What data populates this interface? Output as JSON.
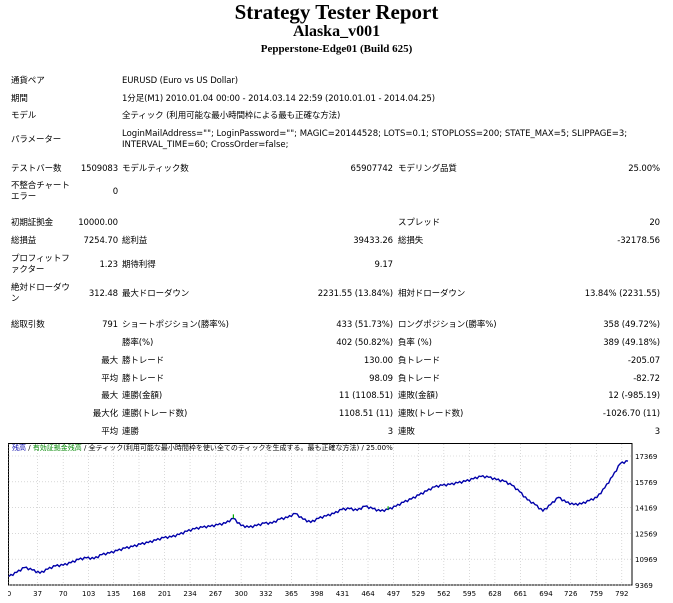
{
  "header": {
    "title": "Strategy Tester Report",
    "ea_name": "Alaska_v001",
    "server": "Pepperstone-Edge01 (Build 625)"
  },
  "info": {
    "symbol_label": "通貨ペア",
    "symbol_value": "EURUSD (Euro vs US Dollar)",
    "period_label": "期間",
    "period_value": "1分足(M1) 2010.01.04 00:00 - 2014.03.14 22:59 (2010.01.01 - 2014.04.25)",
    "model_label": "モデル",
    "model_value": "全ティック (利用可能な最小時間枠による最も正確な方法)",
    "params_label": "パラメーター",
    "params_value": "LoginMailAddress=\"\"; LoginPassword=\"\"; MAGIC=20144528; LOTS=0.1; STOPLOSS=200; STATE_MAX=5; SLIPPAGE=3; INTERVAL_TIME=60; CrossOrder=false;"
  },
  "stats": {
    "bars_label": "テストバー数",
    "bars_value": "1509083",
    "ticks_label": "モデルティック数",
    "ticks_value": "65907742",
    "quality_label": "モデリング品質",
    "quality_value": "25.00%",
    "mismatch_label": "不整合チャート\nエラー",
    "mismatch_value": "0",
    "deposit_label": "初期証拠金",
    "deposit_value": "10000.00",
    "spread_label": "スプレッド",
    "spread_value": "20",
    "net_label": "総損益",
    "net_value": "7254.70",
    "gross_profit_label": "総利益",
    "gross_profit_value": "39433.26",
    "gross_loss_label": "総損失",
    "gross_loss_value": "-32178.56",
    "pf_label": "プロフィットファクター",
    "pf_value": "1.23",
    "payoff_label": "期待利得",
    "payoff_value": "9.17",
    "abs_dd_label": "絶対ドローダウン",
    "abs_dd_value": "312.48",
    "max_dd_label": "最大ドローダウン",
    "max_dd_value": "2231.55 (13.84%)",
    "rel_dd_label": "相対ドローダウン",
    "rel_dd_value": "13.84% (2231.55)",
    "total_trades_label": "総取引数",
    "total_trades_value": "791",
    "short_label": "ショートポジション(勝率%)",
    "short_value": "433 (51.73%)",
    "long_label": "ロングポジション(勝率%)",
    "long_value": "358 (49.72%)",
    "win_label": "勝率(%)",
    "win_value": "402 (50.82%)",
    "loss_label": "負率 (%)",
    "loss_value": "389 (49.18%)",
    "largest_label": "最大",
    "largest_win_label": "勝トレード",
    "largest_win_value": "130.00",
    "largest_loss_label": "負トレード",
    "largest_loss_value": "-205.07",
    "average_label": "平均",
    "avg_win_label": "勝トレード",
    "avg_win_value": "98.09",
    "avg_loss_label": "負トレード",
    "avg_loss_value": "-82.72",
    "max_label": "最大",
    "cons_wins_label": "連勝(金額)",
    "cons_wins_value": "11 (1108.51)",
    "cons_losses_label": "連敗(金額)",
    "cons_losses_value": "12 (-985.19)",
    "maximal_label": "最大化",
    "cons_profit_label": "連勝(トレード数)",
    "cons_profit_value": "1108.51 (11)",
    "cons_loss_label": "連敗(トレード数)",
    "cons_loss_value": "-1026.70 (11)",
    "avg2_label": "平均",
    "avg_cons_wins_label": "連勝",
    "avg_cons_wins_value": "3",
    "avg_cons_losses_label": "連敗",
    "avg_cons_losses_value": "3"
  },
  "chart_legend": {
    "balance": "残高",
    "sep1": " / ",
    "equity": "有効証拠金残高",
    "sep2": " / ",
    "rest": "全ティック(利用可能な最小時間枠を使い全てのティックを生成する。最も正確な方法) / 25.00%"
  },
  "chart_data": {
    "type": "line",
    "x_ticks": [
      "0",
      "37",
      "70",
      "103",
      "135",
      "168",
      "201",
      "234",
      "267",
      "300",
      "332",
      "365",
      "398",
      "431",
      "464",
      "497",
      "529",
      "562",
      "595",
      "628",
      "661",
      "694",
      "726",
      "759",
      "792"
    ],
    "y_ticks": [
      "17369",
      "15769",
      "14169",
      "12569",
      "10969",
      "9369"
    ],
    "ylim": [
      9369,
      17369
    ],
    "xlim": [
      0,
      800
    ],
    "series": [
      {
        "values": [
          [
            0,
            9900
          ],
          [
            10,
            10150
          ],
          [
            20,
            10450
          ],
          [
            30,
            10300
          ],
          [
            40,
            10100
          ],
          [
            50,
            10350
          ],
          [
            60,
            10550
          ],
          [
            70,
            10600
          ],
          [
            80,
            10750
          ],
          [
            90,
            10950
          ],
          [
            100,
            11050
          ],
          [
            110,
            11000
          ],
          [
            120,
            11250
          ],
          [
            130,
            11350
          ],
          [
            140,
            11500
          ],
          [
            150,
            11650
          ],
          [
            160,
            11750
          ],
          [
            170,
            11900
          ],
          [
            180,
            12000
          ],
          [
            190,
            12150
          ],
          [
            200,
            12300
          ],
          [
            210,
            12350
          ],
          [
            220,
            12500
          ],
          [
            230,
            12700
          ],
          [
            240,
            12850
          ],
          [
            250,
            12950
          ],
          [
            260,
            13000
          ],
          [
            270,
            13100
          ],
          [
            280,
            13200
          ],
          [
            290,
            13500
          ],
          [
            300,
            13050
          ],
          [
            310,
            12950
          ],
          [
            320,
            13050
          ],
          [
            330,
            13200
          ],
          [
            340,
            13200
          ],
          [
            350,
            13450
          ],
          [
            360,
            13550
          ],
          [
            370,
            13800
          ],
          [
            380,
            13450
          ],
          [
            390,
            13250
          ],
          [
            400,
            13500
          ],
          [
            410,
            13650
          ],
          [
            420,
            13800
          ],
          [
            430,
            14050
          ],
          [
            440,
            14100
          ],
          [
            450,
            14000
          ],
          [
            460,
            14250
          ],
          [
            470,
            14100
          ],
          [
            480,
            13950
          ],
          [
            490,
            14050
          ],
          [
            500,
            14250
          ],
          [
            510,
            14500
          ],
          [
            520,
            14700
          ],
          [
            530,
            14950
          ],
          [
            540,
            15200
          ],
          [
            550,
            15450
          ],
          [
            560,
            15550
          ],
          [
            570,
            15600
          ],
          [
            580,
            15700
          ],
          [
            590,
            15800
          ],
          [
            600,
            15950
          ],
          [
            610,
            16100
          ],
          [
            620,
            16050
          ],
          [
            630,
            15900
          ],
          [
            640,
            15800
          ],
          [
            650,
            15550
          ],
          [
            660,
            15150
          ],
          [
            670,
            14650
          ],
          [
            680,
            14350
          ],
          [
            690,
            13950
          ],
          [
            700,
            14350
          ],
          [
            710,
            14800
          ],
          [
            720,
            14500
          ],
          [
            730,
            14350
          ],
          [
            740,
            14400
          ],
          [
            750,
            14600
          ],
          [
            760,
            14800
          ],
          [
            770,
            15400
          ],
          [
            780,
            16100
          ],
          [
            790,
            16900
          ],
          [
            800,
            17050
          ]
        ]
      }
    ]
  },
  "colors": {
    "balance": "#0000aa",
    "equity": "#00aa00",
    "grid": "#c0c0c0"
  }
}
